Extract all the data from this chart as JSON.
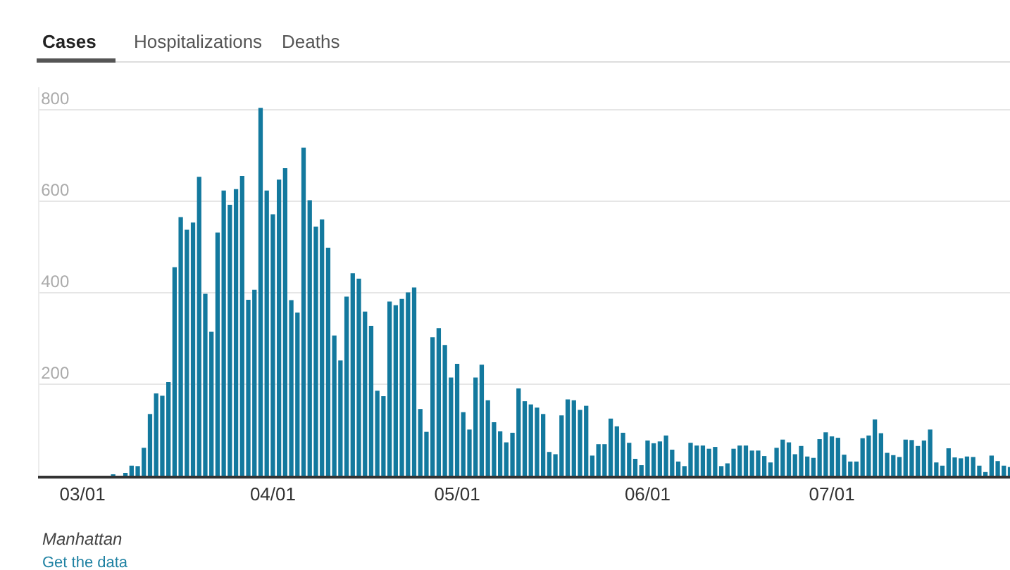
{
  "chart_data": {
    "type": "bar",
    "annotations": [
      "Cases",
      "Hospitalizations",
      "Deaths",
      "Manhattan",
      "Get the data"
    ],
    "x": [
      "--03-06",
      "--03-07",
      "--03-08",
      "--03-09",
      "--03-10",
      "--03-11",
      "--03-12",
      "--03-13",
      "--03-14",
      "--03-15",
      "--03-16",
      "--03-17",
      "--03-18",
      "--03-19",
      "--03-20",
      "--03-21",
      "--03-22",
      "--03-23",
      "--03-24",
      "--03-25",
      "--03-26",
      "--03-27",
      "--03-28",
      "--03-29",
      "--03-30",
      "--03-31",
      "--04-01",
      "--04-02",
      "--04-03",
      "--04-04",
      "--04-05",
      "--04-06",
      "--04-07",
      "--04-08",
      "--04-09",
      "--04-10",
      "--04-11",
      "--04-12",
      "--04-13",
      "--04-14",
      "--04-15",
      "--04-16",
      "--04-17",
      "--04-18",
      "--04-19",
      "--04-20",
      "--04-21",
      "--04-22",
      "--04-23",
      "--04-24",
      "--04-25",
      "--04-26",
      "--04-27",
      "--04-28",
      "--04-29",
      "--04-30",
      "--05-01",
      "--05-02",
      "--05-03",
      "--05-04",
      "--05-05",
      "--05-06",
      "--05-07",
      "--05-08",
      "--05-09",
      "--05-10",
      "--05-11",
      "--05-12",
      "--05-13",
      "--05-14",
      "--05-15",
      "--05-16",
      "--05-17",
      "--05-18",
      "--05-19",
      "--05-20",
      "--05-21",
      "--05-22",
      "--05-23",
      "--05-24",
      "--05-25",
      "--05-26",
      "--05-27",
      "--05-28",
      "--05-29",
      "--05-30",
      "--05-31",
      "--06-01",
      "--06-02",
      "--06-03",
      "--06-04",
      "--06-05",
      "--06-06",
      "--06-07",
      "--06-08",
      "--06-09",
      "--06-10",
      "--06-11",
      "--06-12",
      "--06-13",
      "--06-14",
      "--06-15",
      "--06-16",
      "--06-17",
      "--06-18",
      "--06-19",
      "--06-20",
      "--06-21",
      "--06-22",
      "--06-23",
      "--06-24",
      "--06-25",
      "--06-26",
      "--06-27",
      "--06-28",
      "--06-29",
      "--06-30",
      "--07-01",
      "--07-02",
      "--07-03",
      "--07-04",
      "--07-05",
      "--07-06",
      "--07-07",
      "--07-08",
      "--07-09",
      "--07-10",
      "--07-11",
      "--07-12",
      "--07-13",
      "--07-14",
      "--07-15",
      "--07-16",
      "--07-17",
      "--07-18",
      "--07-19",
      "--07-20",
      "--07-21",
      "--07-22",
      "--07-23",
      "--07-24",
      "--07-25",
      "--07-26",
      "--07-27",
      "--07-28",
      "--07-29",
      "--07-30"
    ],
    "series": [
      {
        "color": "#13799e",
        "values": [
          3,
          0,
          5,
          22,
          21,
          61,
          135,
          180,
          175,
          205,
          456,
          566,
          538,
          554,
          654,
          398,
          315,
          532,
          624,
          593,
          627,
          656,
          385,
          407,
          805,
          624,
          572,
          648,
          673,
          384,
          357,
          718,
          603,
          545,
          561,
          499,
          307,
          252,
          392,
          443,
          431,
          359,
          328,
          186,
          174,
          381,
          373,
          387,
          401,
          412,
          146,
          96,
          303,
          323,
          286,
          215,
          245,
          139,
          101,
          215,
          243,
          165,
          117,
          97,
          73,
          94,
          191,
          163,
          156,
          149,
          135,
          52,
          47,
          132,
          167,
          165,
          144,
          153,
          44,
          69,
          69,
          125,
          108,
          94,
          72,
          37,
          23,
          77,
          71,
          75,
          88,
          57,
          31,
          21,
          72,
          66,
          66,
          59,
          63,
          21,
          27,
          59,
          66,
          66,
          55,
          55,
          43,
          29,
          61,
          79,
          73,
          47,
          65,
          42,
          39,
          80,
          95,
          86,
          83,
          46,
          31,
          31,
          82,
          88,
          123,
          93,
          50,
          45,
          41,
          79,
          78,
          65,
          77,
          101,
          29,
          22,
          60,
          40,
          38,
          42,
          41,
          22,
          8,
          44,
          32,
          22,
          19
        ]
      }
    ],
    "xlim": [
      "--02-22",
      "--07-30"
    ],
    "xticks": [
      {
        "value": "--03-01",
        "label": "03/01"
      },
      {
        "value": "--04-01",
        "label": "04/01"
      },
      {
        "value": "--05-01",
        "label": "05/01"
      },
      {
        "value": "--06-01",
        "label": "06/01"
      },
      {
        "value": "--07-01",
        "label": "07/01"
      }
    ],
    "ylim": [
      0,
      850
    ],
    "yticks": [
      200,
      400,
      600,
      800
    ],
    "grid": "y"
  }
}
